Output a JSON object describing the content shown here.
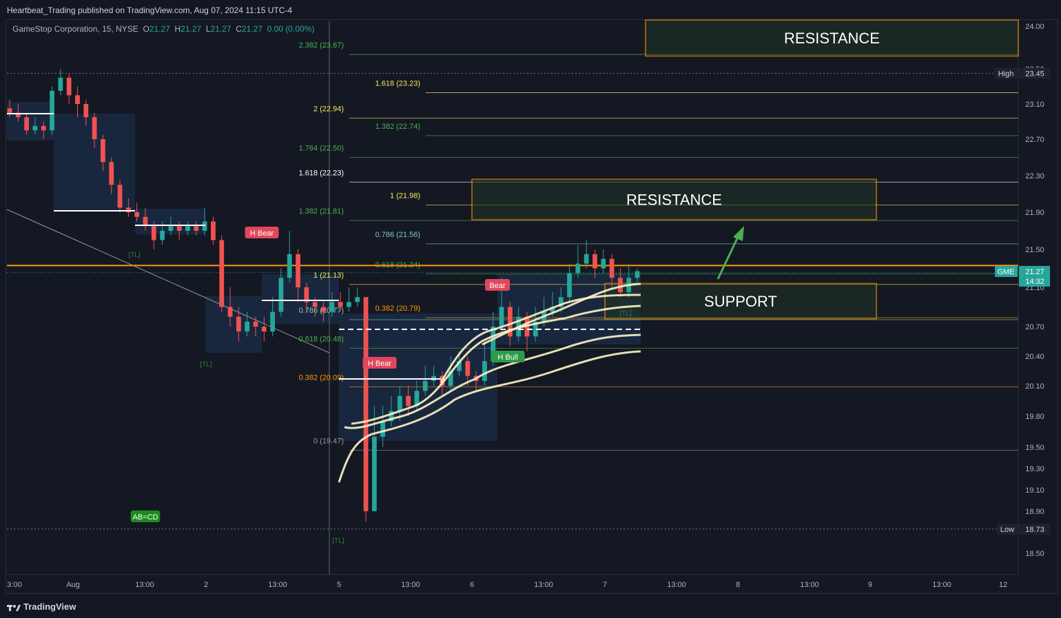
{
  "header": {
    "published": "Heartbeat_Trading published on TradingView.com, Aug 07, 2024 11:15 UTC-4"
  },
  "symbol": {
    "name": "GameStop Corporation, 15, NYSE",
    "o_label": "O",
    "o": "21.27",
    "h_label": "H",
    "h": "21.27",
    "l_label": "L",
    "l": "21.27",
    "c_label": "C",
    "c": "21.27",
    "change": "0.00 (0.00%)"
  },
  "brand": {
    "name": "TradingView"
  },
  "colors": {
    "bg": "#141823",
    "up": "#26a69a",
    "down": "#ef5350",
    "orange": "#ff9800",
    "fib_yellow": "#f7e85a",
    "fib_green": "#4caf50",
    "fib_teal": "#80cbc4",
    "band": "#fff3c4",
    "zone_blue": "#1e3a5f"
  },
  "chart_data": {
    "type": "candlestick",
    "ylim": [
      18.3,
      24.2
    ],
    "y_ticks": [
      "24.00",
      "23.50",
      "23.10",
      "22.70",
      "22.30",
      "21.90",
      "21.50",
      "21.10",
      "20.70",
      "20.40",
      "20.10",
      "19.80",
      "19.50",
      "19.30",
      "19.10",
      "18.90",
      "18.50"
    ],
    "x_ticks": [
      "3:00",
      "Aug",
      "13:00",
      "2",
      "13:00",
      "5",
      "13:00",
      "6",
      "13:00",
      "7",
      "13:00",
      "8",
      "13:00",
      "9",
      "13:00",
      "12"
    ],
    "price_labels": [
      {
        "tag": "High",
        "value": "23.45"
      },
      {
        "tag": "GME",
        "value": "21.27",
        "sub": "14:32"
      },
      {
        "tag": "Low",
        "value": "18.73"
      }
    ],
    "key_levels": {
      "high": 23.45,
      "last": 21.27,
      "low": 18.73,
      "orange_line": 21.33
    },
    "fib_levels": [
      {
        "label": "2.382 (23.67)",
        "price": 23.67,
        "color": "green"
      },
      {
        "label": "1.618 (23.23)",
        "price": 23.23,
        "color": "yellow"
      },
      {
        "label": "2 (22.94)",
        "price": 22.94,
        "color": "yellow"
      },
      {
        "label": "1.382 (22.74)",
        "price": 22.74,
        "color": "green"
      },
      {
        "label": "1.764 (22.50)",
        "price": 22.5,
        "color": "green"
      },
      {
        "label": "1.618 (22.23)",
        "price": 22.23,
        "color": "white"
      },
      {
        "label": "1 (21.98)",
        "price": 21.98,
        "color": "yellow"
      },
      {
        "label": "1.382 (21.81)",
        "price": 21.81,
        "color": "green"
      },
      {
        "label": "0.786 (21.56)",
        "price": 21.56,
        "color": "teal"
      },
      {
        "label": "0.618 (21.24)",
        "price": 21.24,
        "color": "green"
      },
      {
        "label": "1 (21.13)",
        "price": 21.13,
        "color": "yellow"
      },
      {
        "label": "0.382 (20.79)",
        "price": 20.79,
        "color": "orange"
      },
      {
        "label": "0.786 (20.77)",
        "price": 20.77,
        "color": "teal"
      },
      {
        "label": "0.618 (20.48)",
        "price": 20.48,
        "color": "green"
      },
      {
        "label": "0.382 (20.09)",
        "price": 20.09,
        "color": "orange"
      },
      {
        "label": "0 (19.47)",
        "price": 19.47,
        "color": "gray"
      }
    ],
    "zones": [
      {
        "label": "RESISTANCE",
        "from": 23.65,
        "to": 24.2
      },
      {
        "label": "RESISTANCE",
        "from": 21.82,
        "to": 22.26
      },
      {
        "label": "SUPPORT",
        "from": 20.78,
        "to": 21.14
      }
    ],
    "annotations": [
      "H Bear",
      "H Bear",
      "Bear",
      "H Bull",
      "AB=CD",
      "[TL]",
      "[TL]",
      "[TL]",
      "[TL]"
    ],
    "candles": [
      [
        23.05,
        23.0,
        23.15,
        22.95
      ],
      [
        23.0,
        22.95,
        23.1,
        22.9
      ],
      [
        22.95,
        22.8,
        23.0,
        22.75
      ],
      [
        22.8,
        22.85,
        22.95,
        22.75
      ],
      [
        22.85,
        22.8,
        22.9,
        22.7
      ],
      [
        22.8,
        23.25,
        23.3,
        22.75
      ],
      [
        23.25,
        23.4,
        23.5,
        23.2
      ],
      [
        23.4,
        23.2,
        23.45,
        23.1
      ],
      [
        23.2,
        23.1,
        23.3,
        22.95
      ],
      [
        23.1,
        22.95,
        23.15,
        22.85
      ],
      [
        22.95,
        22.7,
        23.0,
        22.6
      ],
      [
        22.7,
        22.45,
        22.75,
        22.35
      ],
      [
        22.45,
        22.2,
        22.5,
        22.1
      ],
      [
        22.2,
        21.95,
        22.25,
        21.9
      ],
      [
        21.95,
        21.9,
        22.05,
        21.85
      ],
      [
        21.9,
        21.85,
        22.0,
        21.8
      ],
      [
        21.85,
        21.75,
        21.95,
        21.7
      ],
      [
        21.75,
        21.6,
        21.8,
        21.5
      ],
      [
        21.6,
        21.7,
        21.8,
        21.55
      ],
      [
        21.7,
        21.75,
        21.85,
        21.65
      ],
      [
        21.75,
        21.7,
        21.8,
        21.6
      ],
      [
        21.7,
        21.75,
        21.8,
        21.65
      ],
      [
        21.75,
        21.7,
        21.8,
        21.65
      ],
      [
        21.7,
        21.8,
        21.95,
        21.65
      ],
      [
        21.8,
        21.6,
        21.85,
        21.55
      ],
      [
        21.6,
        20.9,
        21.65,
        20.85
      ],
      [
        20.9,
        20.8,
        21.1,
        20.7
      ],
      [
        20.8,
        20.65,
        20.9,
        20.55
      ],
      [
        20.65,
        20.75,
        20.85,
        20.6
      ],
      [
        20.75,
        20.7,
        20.8,
        20.6
      ],
      [
        20.7,
        20.65,
        20.8,
        20.55
      ],
      [
        20.65,
        20.85,
        21.0,
        20.6
      ],
      [
        20.85,
        21.2,
        21.3,
        20.8
      ],
      [
        21.2,
        21.45,
        21.7,
        21.15
      ],
      [
        21.45,
        21.1,
        21.5,
        20.95
      ],
      [
        21.1,
        20.95,
        21.15,
        20.85
      ],
      [
        20.95,
        20.9,
        21.0,
        20.8
      ],
      [
        20.9,
        20.85,
        20.95,
        20.75
      ],
      [
        20.85,
        20.95,
        21.05,
        20.8
      ],
      [
        20.95,
        20.9,
        21.05,
        20.85
      ],
      [
        20.9,
        20.95,
        21.1,
        20.85
      ],
      [
        20.95,
        21.0,
        21.1,
        20.9
      ],
      [
        21.0,
        18.9,
        21.0,
        18.8
      ],
      [
        18.9,
        19.6,
        19.9,
        18.9
      ],
      [
        19.6,
        19.75,
        19.9,
        19.5
      ],
      [
        19.75,
        19.85,
        20.0,
        19.7
      ],
      [
        19.85,
        20.0,
        20.1,
        19.75
      ],
      [
        20.0,
        19.9,
        20.1,
        19.8
      ],
      [
        19.9,
        20.05,
        20.15,
        19.85
      ],
      [
        20.05,
        20.15,
        20.3,
        20.0
      ],
      [
        20.15,
        20.2,
        20.3,
        20.1
      ],
      [
        20.2,
        20.1,
        20.25,
        20.0
      ],
      [
        20.1,
        20.25,
        20.4,
        20.05
      ],
      [
        20.25,
        20.35,
        20.45,
        20.2
      ],
      [
        20.35,
        20.2,
        20.4,
        20.1
      ],
      [
        20.2,
        20.15,
        20.25,
        20.05
      ],
      [
        20.15,
        20.35,
        20.55,
        20.1
      ],
      [
        20.35,
        20.7,
        20.85,
        20.3
      ],
      [
        20.7,
        20.9,
        21.2,
        20.65
      ],
      [
        20.9,
        20.6,
        20.95,
        20.5
      ],
      [
        20.6,
        20.8,
        20.9,
        20.55
      ],
      [
        20.8,
        20.6,
        20.85,
        20.45
      ],
      [
        20.6,
        20.75,
        20.9,
        20.55
      ],
      [
        20.75,
        20.85,
        21.0,
        20.7
      ],
      [
        20.85,
        20.9,
        21.05,
        20.8
      ],
      [
        20.9,
        21.0,
        21.1,
        20.85
      ],
      [
        21.0,
        21.25,
        21.35,
        20.95
      ],
      [
        21.25,
        21.35,
        21.55,
        21.2
      ],
      [
        21.35,
        21.45,
        21.6,
        21.3
      ],
      [
        21.45,
        21.3,
        21.5,
        21.2
      ],
      [
        21.3,
        21.4,
        21.5,
        21.25
      ],
      [
        21.4,
        21.2,
        21.45,
        21.1
      ],
      [
        21.2,
        21.05,
        21.3,
        21.0
      ],
      [
        21.05,
        21.2,
        21.35,
        21.0
      ],
      [
        21.2,
        21.27,
        21.3,
        21.15
      ]
    ]
  }
}
